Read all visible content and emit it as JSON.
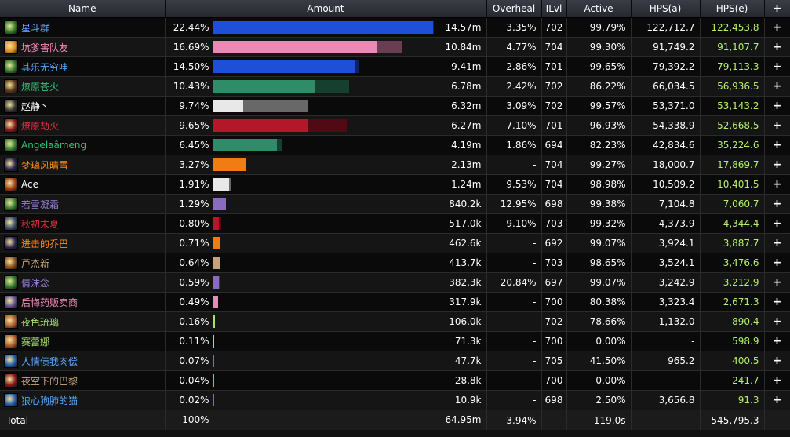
{
  "headers": {
    "name": "Name",
    "amount": "Amount",
    "overheal": "Overheal",
    "ilvl": "ILvl",
    "active": "Active",
    "hpsa": "HPS(a)",
    "hpse": "HPS(e)",
    "plus": "+"
  },
  "rows": [
    {
      "name": "星斗群",
      "name_color": "#5aa9ff",
      "icon": "nature-icon",
      "icon_color": "#2f7a2a",
      "pct": "22.44%",
      "bar_color": "#1e4fd8",
      "bar_fill": 100,
      "bar_over": 0.5,
      "amount": "14.57m",
      "overheal": "3.35%",
      "ilvl": "702",
      "active": "99.79%",
      "hpsa": "122,712.7",
      "hpse": "122,453.8"
    },
    {
      "name": "坑爹害队友",
      "name_color": "#f58cba",
      "icon": "holy-icon",
      "icon_color": "#d98a20",
      "pct": "16.69%",
      "bar_color": "#e98ab6",
      "bar_fill": 74.4,
      "bar_over": 11.7,
      "amount": "10.84m",
      "overheal": "4.77%",
      "ilvl": "704",
      "active": "99.30%",
      "hpsa": "91,749.2",
      "hpse": "91,107.7"
    },
    {
      "name": "其乐无穷哇",
      "name_color": "#5aa9ff",
      "icon": "nature-icon",
      "icon_color": "#2f7a2a",
      "pct": "14.50%",
      "bar_color": "#1e4fd8",
      "bar_fill": 64.6,
      "bar_over": 1.4,
      "amount": "9.41m",
      "overheal": "2.86%",
      "ilvl": "701",
      "active": "99.65%",
      "hpsa": "79,392.2",
      "hpse": "79,113.3"
    },
    {
      "name": "燎原苍火",
      "name_color": "#33c07a",
      "icon": "monk-icon",
      "icon_color": "#5c3a1a",
      "pct": "10.43%",
      "bar_color": "#2e8c68",
      "bar_fill": 46.5,
      "bar_over": 15.5,
      "amount": "6.78m",
      "overheal": "2.42%",
      "ilvl": "702",
      "active": "86.22%",
      "hpsa": "66,034.5",
      "hpse": "56,936.5"
    },
    {
      "name": "赵静丶",
      "name_color": "#ffffff",
      "icon": "shadow-icon",
      "icon_color": "#333333",
      "pct": "9.74%",
      "bar_color": "#e8e8e8",
      "bar_fill": 13.7,
      "bar_over": 29.6,
      "amount": "6.32m",
      "overheal": "3.09%",
      "ilvl": "702",
      "active": "99.57%",
      "hpsa": "53,371.0",
      "hpse": "53,143.2"
    },
    {
      "name": "燎原劫火",
      "name_color": "#e0323c",
      "icon": "blood-icon",
      "icon_color": "#8a1a1a",
      "pct": "9.65%",
      "bar_color": "#b5172a",
      "bar_fill": 43.0,
      "bar_over": 17.8,
      "amount": "6.27m",
      "overheal": "7.10%",
      "ilvl": "701",
      "active": "96.93%",
      "hpsa": "54,338.9",
      "hpse": "52,668.5"
    },
    {
      "name": "Angelaâmeng",
      "name_color": "#33c07a",
      "icon": "monk-icon",
      "icon_color": "#2f7a2a",
      "pct": "6.45%",
      "bar_color": "#2e8c68",
      "bar_fill": 28.8,
      "bar_over": 2.3,
      "amount": "4.19m",
      "overheal": "1.86%",
      "ilvl": "694",
      "active": "82.23%",
      "hpsa": "42,834.6",
      "hpse": "35,224.6"
    },
    {
      "name": "梦璃风晴雪",
      "name_color": "#ff8c1a",
      "icon": "star-icon",
      "icon_color": "#2a2250",
      "pct": "3.27%",
      "bar_color": "#f07d14",
      "bar_fill": 14.6,
      "bar_over": 0,
      "amount": "2.13m",
      "overheal": "-",
      "ilvl": "704",
      "active": "99.27%",
      "hpsa": "18,000.7",
      "hpse": "17,869.7"
    },
    {
      "name": "Ace",
      "name_color": "#ffffff",
      "icon": "fire-icon",
      "icon_color": "#a33a10",
      "pct": "1.91%",
      "bar_color": "#e8e8e8",
      "bar_fill": 7.0,
      "bar_over": 1.2,
      "amount": "1.24m",
      "overheal": "9.53%",
      "ilvl": "704",
      "active": "98.98%",
      "hpsa": "10,509.2",
      "hpse": "10,401.5"
    },
    {
      "name": "若雪凝霜",
      "name_color": "#9a82d2",
      "icon": "nature-icon",
      "icon_color": "#2f7a2a",
      "pct": "1.29%",
      "bar_color": "#8a6bc2",
      "bar_fill": 5.7,
      "bar_over": 0,
      "amount": "840.2k",
      "overheal": "12.95%",
      "ilvl": "698",
      "active": "99.38%",
      "hpsa": "7,104.8",
      "hpse": "7,060.7"
    },
    {
      "name": "秋初末夏",
      "name_color": "#e0323c",
      "icon": "skull-icon",
      "icon_color": "#3a4a6a",
      "pct": "0.80%",
      "bar_color": "#b5172a",
      "bar_fill": 2.5,
      "bar_over": 1.0,
      "amount": "517.0k",
      "overheal": "9.10%",
      "ilvl": "703",
      "active": "99.32%",
      "hpsa": "4,373.9",
      "hpse": "4,344.4"
    },
    {
      "name": "进击的乔巴",
      "name_color": "#ff8c1a",
      "icon": "star-icon",
      "icon_color": "#2a2250",
      "pct": "0.71%",
      "bar_color": "#f07d14",
      "bar_fill": 3.2,
      "bar_over": 0,
      "amount": "462.6k",
      "overheal": "-",
      "ilvl": "692",
      "active": "99.07%",
      "hpsa": "3,924.1",
      "hpse": "3,887.7"
    },
    {
      "name": "芦杰新",
      "name_color": "#c8a878",
      "icon": "warrior-icon",
      "icon_color": "#8a4a1a",
      "pct": "0.64%",
      "bar_color": "#c4a27a",
      "bar_fill": 2.9,
      "bar_over": 0,
      "amount": "413.7k",
      "overheal": "-",
      "ilvl": "703",
      "active": "98.65%",
      "hpsa": "3,524.1",
      "hpse": "3,476.6"
    },
    {
      "name": "倩沫念",
      "name_color": "#9a82d2",
      "icon": "nature-icon",
      "icon_color": "#2f7a2a",
      "pct": "0.59%",
      "bar_color": "#8a6bc2",
      "bar_fill": 2.6,
      "bar_over": 0.7,
      "amount": "382.3k",
      "overheal": "20.84%",
      "ilvl": "697",
      "active": "99.07%",
      "hpsa": "3,242.9",
      "hpse": "3,212.9"
    },
    {
      "name": "后悔药贩卖商",
      "name_color": "#f58cba",
      "icon": "shield-icon",
      "icon_color": "#5a4a8a",
      "pct": "0.49%",
      "bar_color": "#e98ab6",
      "bar_fill": 2.1,
      "bar_over": 0,
      "amount": "317.9k",
      "overheal": "-",
      "ilvl": "700",
      "active": "80.38%",
      "hpsa": "3,323.4",
      "hpse": "2,671.3"
    },
    {
      "name": "夜色琉璃",
      "name_color": "#a8e070",
      "icon": "hunter-icon",
      "icon_color": "#b05a2a",
      "pct": "0.16%",
      "bar_color": "#a8e070",
      "bar_fill": 0.7,
      "bar_over": 0,
      "amount": "106.0k",
      "overheal": "-",
      "ilvl": "702",
      "active": "78.66%",
      "hpsa": "1,132.0",
      "hpse": "890.4"
    },
    {
      "name": "赛蕾娜",
      "name_color": "#a8e070",
      "icon": "hunter-icon",
      "icon_color": "#b05a2a",
      "pct": "0.11%",
      "bar_color": "#a8e070",
      "bar_fill": 0.5,
      "bar_over": 0,
      "amount": "71.3k",
      "overheal": "-",
      "ilvl": "700",
      "active": "0.00%",
      "hpsa": "-",
      "hpse": "598.9"
    },
    {
      "name": "人情债我肉偿",
      "name_color": "#5aa9ff",
      "icon": "frost-icon",
      "icon_color": "#1e5aa8",
      "pct": "0.07%",
      "bar_color": "#3a8ae0",
      "bar_fill": 0.3,
      "bar_over": 0,
      "amount": "47.7k",
      "overheal": "-",
      "ilvl": "705",
      "active": "41.50%",
      "hpsa": "965.2",
      "hpse": "400.5"
    },
    {
      "name": "夜空下的巴黎",
      "name_color": "#c8a878",
      "icon": "warrior-icon",
      "icon_color": "#8a1a1a",
      "pct": "0.04%",
      "bar_color": "#c4a27a",
      "bar_fill": 0.2,
      "bar_over": 0,
      "amount": "28.8k",
      "overheal": "-",
      "ilvl": "700",
      "active": "0.00%",
      "hpsa": "-",
      "hpse": "241.7"
    },
    {
      "name": "狼心狗肺的猫",
      "name_color": "#5aa9ff",
      "icon": "frost-icon",
      "icon_color": "#1e5aa8",
      "pct": "0.02%",
      "bar_color": "#3a8ae0",
      "bar_fill": 0.1,
      "bar_over": 0,
      "amount": "10.9k",
      "overheal": "-",
      "ilvl": "698",
      "active": "2.50%",
      "hpsa": "3,656.8",
      "hpse": "91.3"
    }
  ],
  "total": {
    "name": "Total",
    "pct": "100%",
    "amount": "64.95m",
    "overheal": "3.94%",
    "ilvl": "-",
    "active": "119.0s",
    "hpsa": "",
    "hpse": "545,795.3"
  }
}
